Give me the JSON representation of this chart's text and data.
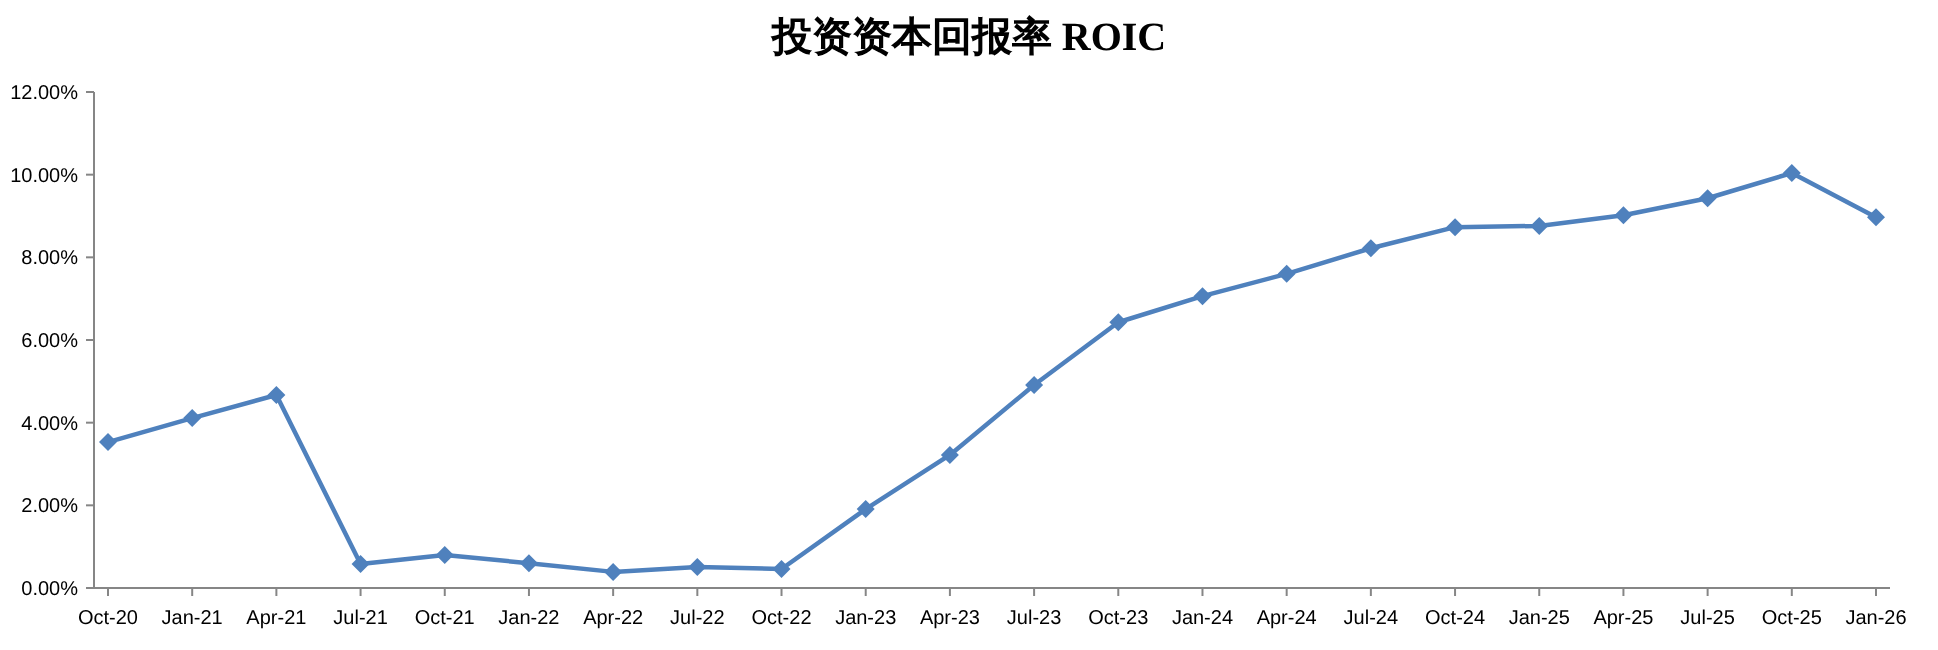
{
  "chart_data": {
    "type": "line",
    "title": "投资资本回报率 ROIC",
    "categories": [
      "Oct-20",
      "Jan-21",
      "Apr-21",
      "Jul-21",
      "Oct-21",
      "Jan-22",
      "Apr-22",
      "Jul-22",
      "Oct-22",
      "Jan-23",
      "Apr-23",
      "Jul-23",
      "Oct-23",
      "Jan-24",
      "Apr-24",
      "Jul-24",
      "Oct-24",
      "Jan-25",
      "Apr-25",
      "Jul-25",
      "Oct-25",
      "Jan-26"
    ],
    "values": [
      3.53,
      4.11,
      4.67,
      0.58,
      0.8,
      0.6,
      0.39,
      0.51,
      0.46,
      1.91,
      3.22,
      4.91,
      6.43,
      7.06,
      7.6,
      8.22,
      8.73,
      8.76,
      9.02,
      9.43,
      10.04,
      8.97
    ],
    "color": "#4f81bd",
    "marker": "diamond",
    "line_style": "solid",
    "ylim": [
      0,
      12
    ],
    "yticks": [
      {
        "value": 0,
        "label": "0.00%"
      },
      {
        "value": 2,
        "label": "2.00%"
      },
      {
        "value": 4,
        "label": "4.00%"
      },
      {
        "value": 6,
        "label": "6.00%"
      },
      {
        "value": 8,
        "label": "8.00%"
      },
      {
        "value": 10,
        "label": "10.00%"
      },
      {
        "value": 12,
        "label": "12.00%"
      }
    ]
  }
}
